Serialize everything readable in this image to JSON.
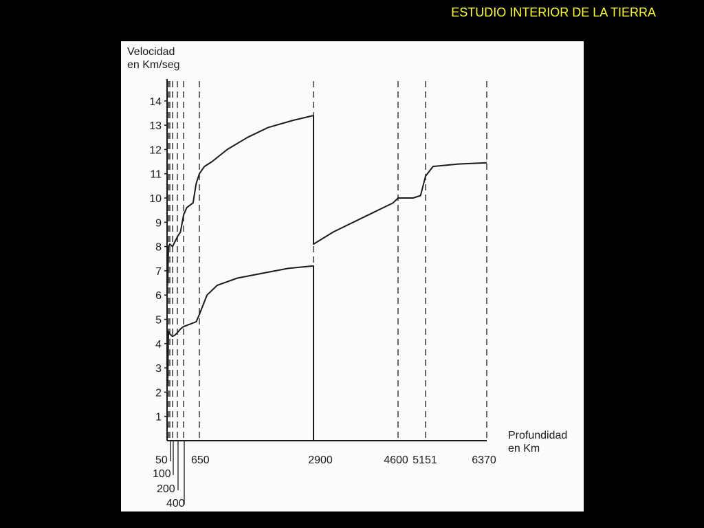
{
  "slide": {
    "title": "ESTUDIO INTERIOR DE LA TIERRA",
    "title_color": "#ffff33",
    "background": "#000000"
  },
  "chart_data": {
    "type": "line",
    "ylabel_lines": [
      "Velocidad",
      "en Km/seg"
    ],
    "xlabel_lines": [
      "Profundidad",
      "en Km"
    ],
    "y_ticks": [
      1,
      2,
      3,
      4,
      5,
      6,
      7,
      8,
      9,
      10,
      11,
      12,
      13,
      14
    ],
    "ylim": [
      0,
      14
    ],
    "xlim": [
      0,
      6370
    ],
    "x_axis_note": "depth axis is schematic (not to scale)",
    "depth_markers": [
      {
        "label": "50",
        "depth": 50
      },
      {
        "label": "100",
        "depth": 100
      },
      {
        "label": "200",
        "depth": 200
      },
      {
        "label": "400",
        "depth": 400
      },
      {
        "label": "650",
        "depth": 650
      },
      {
        "label": "2900",
        "depth": 2900
      },
      {
        "label": "4600",
        "depth": 4600
      },
      {
        "label": "5151",
        "depth": 5151
      },
      {
        "label": "6370",
        "depth": 6370
      }
    ],
    "grid": false,
    "legend": "none",
    "series": [
      {
        "points": [
          {
            "depth": 0,
            "v": 6.3
          },
          {
            "depth": 10,
            "v": 6.5
          },
          {
            "depth": 20,
            "v": 8.0
          },
          {
            "depth": 50,
            "v": 8.1
          },
          {
            "depth": 100,
            "v": 8.0
          },
          {
            "depth": 150,
            "v": 8.2
          },
          {
            "depth": 200,
            "v": 8.4
          },
          {
            "depth": 300,
            "v": 8.6
          },
          {
            "depth": 400,
            "v": 9.3
          },
          {
            "depth": 450,
            "v": 9.6
          },
          {
            "depth": 550,
            "v": 9.8
          },
          {
            "depth": 600,
            "v": 10.6
          },
          {
            "depth": 650,
            "v": 11.0
          },
          {
            "depth": 750,
            "v": 11.3
          },
          {
            "depth": 900,
            "v": 11.5
          },
          {
            "depth": 1200,
            "v": 12.0
          },
          {
            "depth": 1600,
            "v": 12.5
          },
          {
            "depth": 2000,
            "v": 12.9
          },
          {
            "depth": 2500,
            "v": 13.2
          },
          {
            "depth": 2900,
            "v": 13.4
          },
          {
            "depth": 2900,
            "v": 8.1
          },
          {
            "depth": 3300,
            "v": 8.6
          },
          {
            "depth": 4000,
            "v": 9.3
          },
          {
            "depth": 4500,
            "v": 9.8
          },
          {
            "depth": 4600,
            "v": 10.0
          },
          {
            "depth": 4900,
            "v": 10.0
          },
          {
            "depth": 5050,
            "v": 10.1
          },
          {
            "depth": 5151,
            "v": 10.9
          },
          {
            "depth": 5300,
            "v": 11.3
          },
          {
            "depth": 5800,
            "v": 11.4
          },
          {
            "depth": 6370,
            "v": 11.45
          }
        ]
      },
      {
        "points": [
          {
            "depth": 0,
            "v": 2.2
          },
          {
            "depth": 10,
            "v": 2.5
          },
          {
            "depth": 20,
            "v": 4.5
          },
          {
            "depth": 50,
            "v": 4.4
          },
          {
            "depth": 100,
            "v": 4.3
          },
          {
            "depth": 150,
            "v": 4.35
          },
          {
            "depth": 200,
            "v": 4.45
          },
          {
            "depth": 300,
            "v": 4.6
          },
          {
            "depth": 400,
            "v": 4.7
          },
          {
            "depth": 450,
            "v": 4.75
          },
          {
            "depth": 600,
            "v": 4.9
          },
          {
            "depth": 650,
            "v": 5.2
          },
          {
            "depth": 800,
            "v": 6.0
          },
          {
            "depth": 1000,
            "v": 6.4
          },
          {
            "depth": 1400,
            "v": 6.7
          },
          {
            "depth": 1900,
            "v": 6.9
          },
          {
            "depth": 2400,
            "v": 7.1
          },
          {
            "depth": 2900,
            "v": 7.2
          },
          {
            "depth": 2900,
            "v": 0
          }
        ]
      }
    ]
  }
}
